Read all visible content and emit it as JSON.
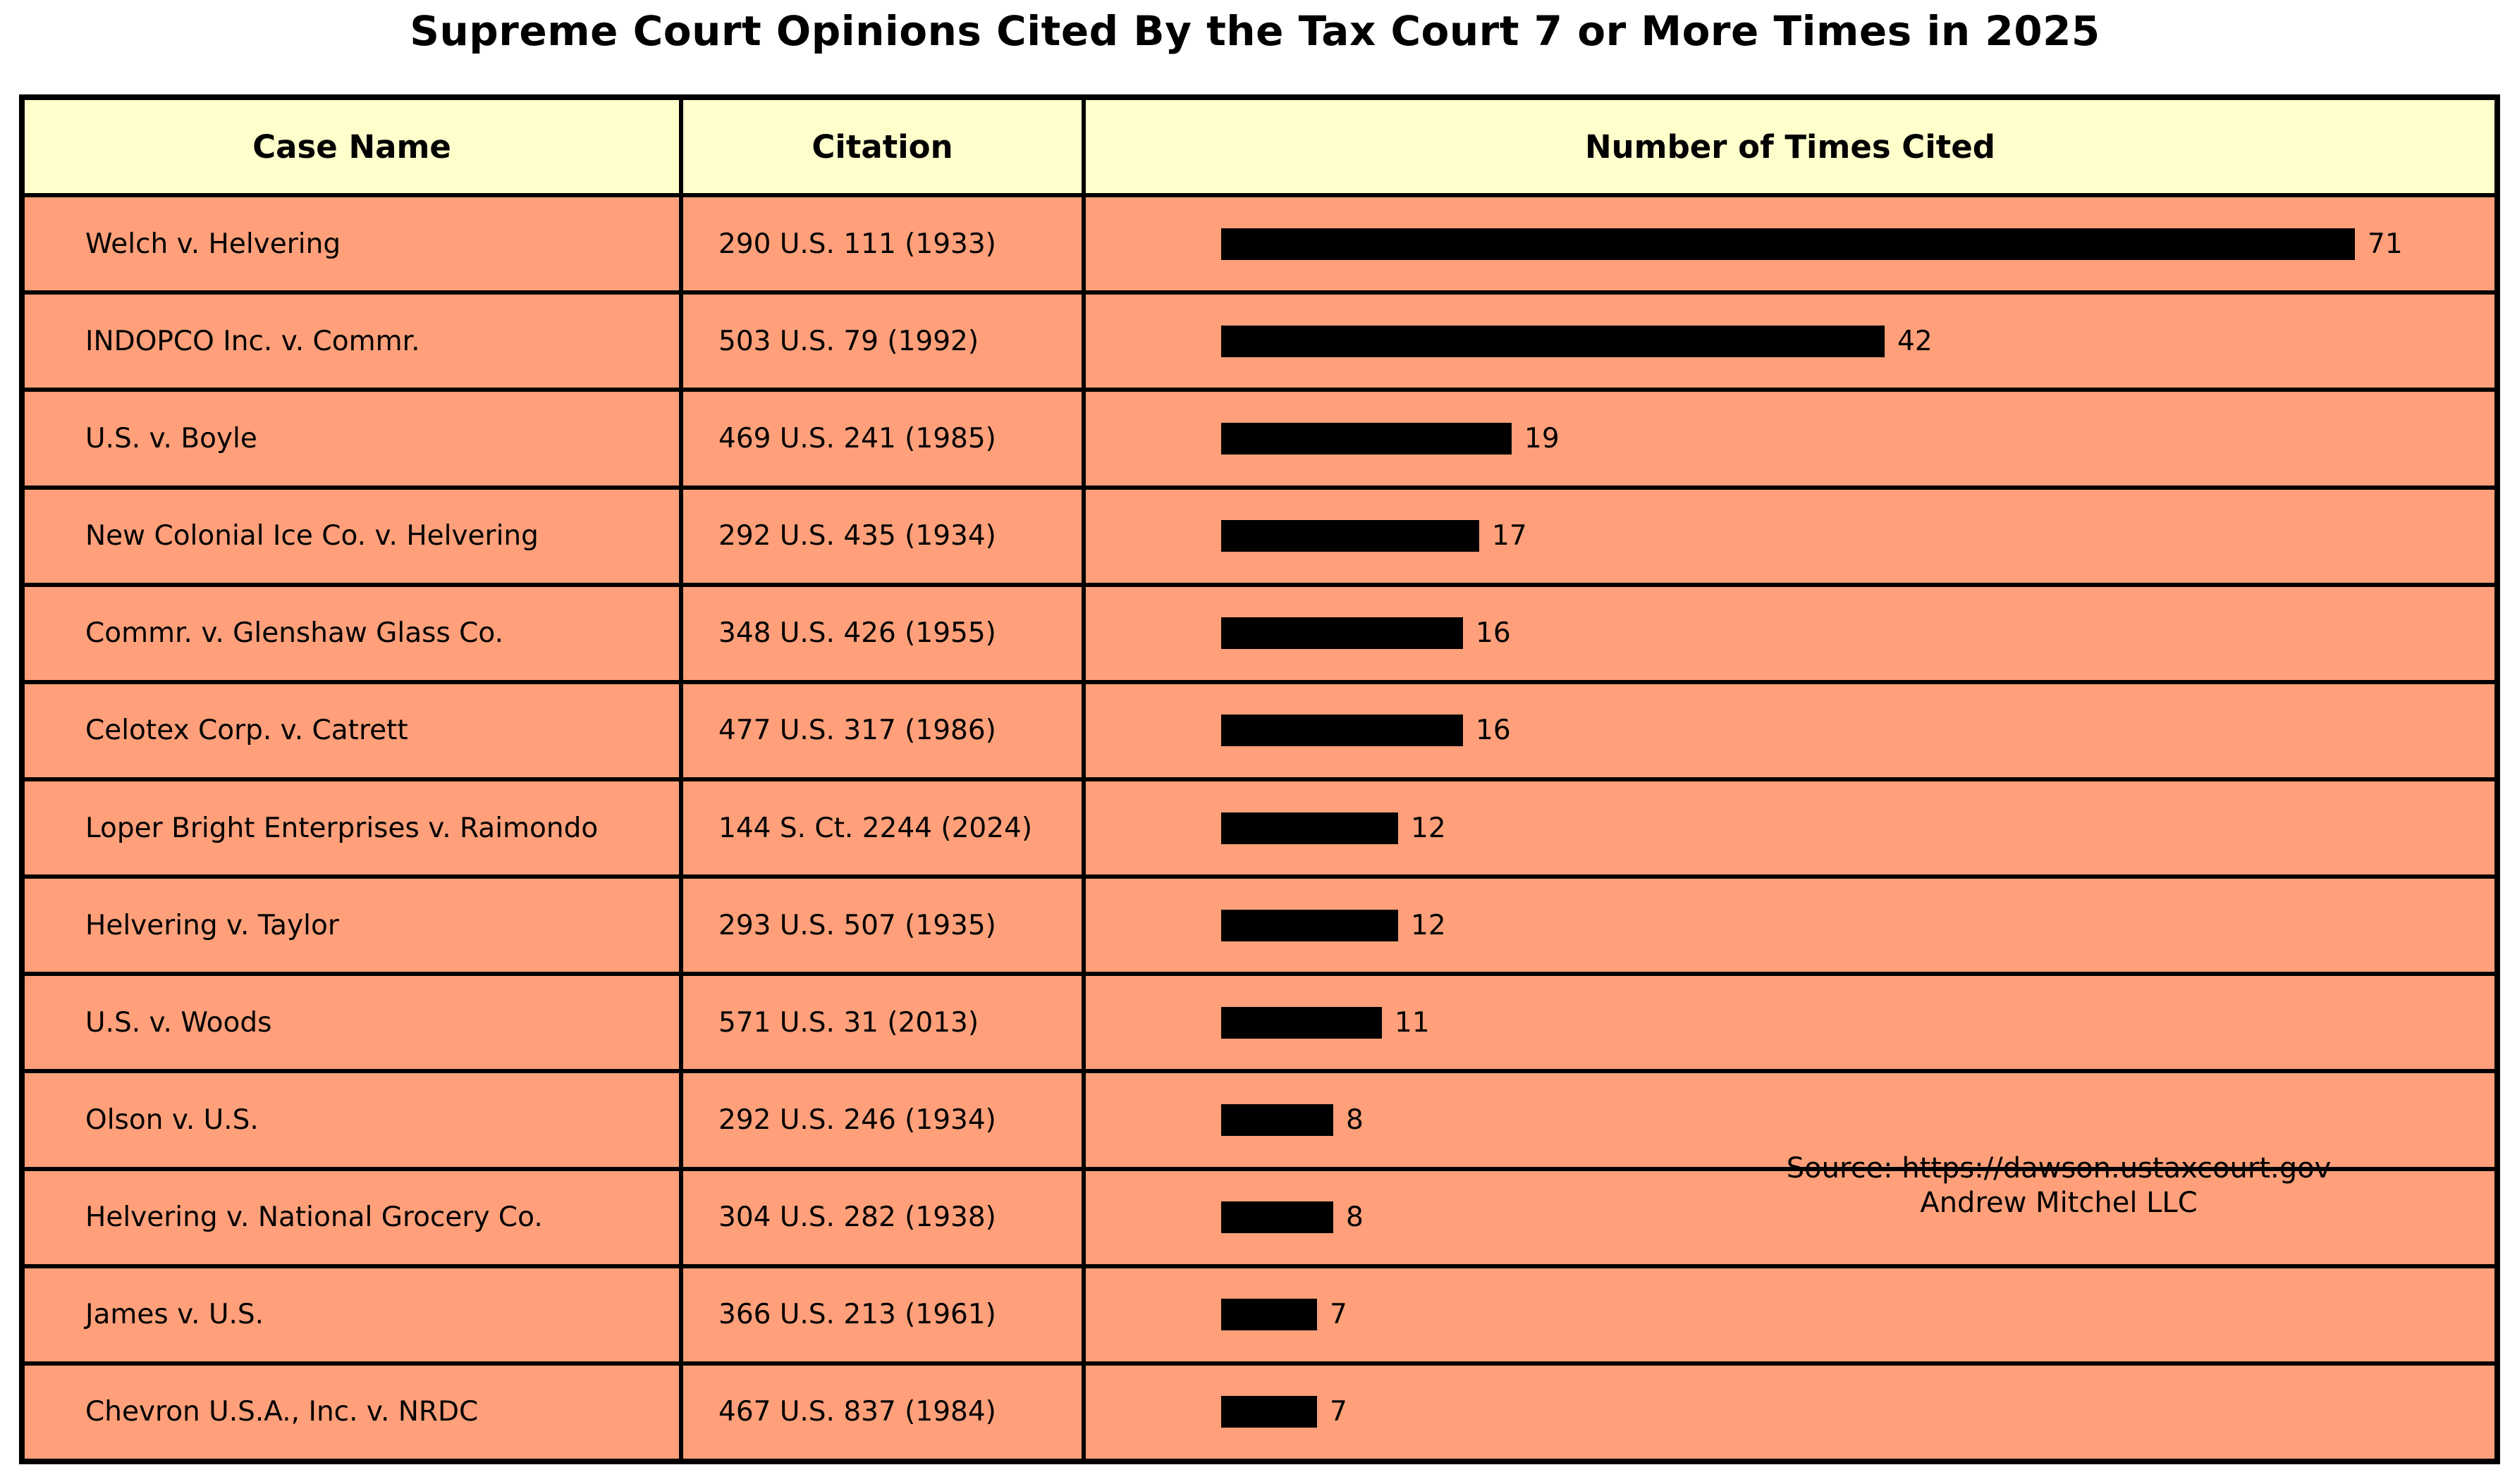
{
  "title": "Supreme Court Opinions Cited By the Tax Court 7 or More Times in 2025",
  "table": {
    "columns": [
      "Case Name",
      "Citation",
      "Number of Times Cited"
    ],
    "rows": [
      {
        "case_name": "Welch v. Helvering",
        "citation": "290 U.S. 111 (1933)",
        "times_cited": 71
      },
      {
        "case_name": "INDOPCO Inc. v. Commr.",
        "citation": "503 U.S. 79 (1992)",
        "times_cited": 42
      },
      {
        "case_name": "U.S. v. Boyle",
        "citation": "469 U.S. 241 (1985)",
        "times_cited": 19
      },
      {
        "case_name": "New Colonial Ice Co. v. Helvering",
        "citation": "292 U.S. 435 (1934)",
        "times_cited": 17
      },
      {
        "case_name": "Commr. v. Glenshaw Glass Co.",
        "citation": "348 U.S. 426 (1955)",
        "times_cited": 16
      },
      {
        "case_name": "Celotex Corp. v. Catrett",
        "citation": "477 U.S. 317 (1986)",
        "times_cited": 16
      },
      {
        "case_name": "Loper Bright Enterprises v. Raimondo",
        "citation": "144 S. Ct. 2244 (2024)",
        "times_cited": 12
      },
      {
        "case_name": "Helvering v. Taylor",
        "citation": "293 U.S. 507 (1935)",
        "times_cited": 12
      },
      {
        "case_name": "U.S. v. Woods",
        "citation": "571 U.S. 31 (2013)",
        "times_cited": 11
      },
      {
        "case_name": "Olson v. U.S.",
        "citation": "292 U.S. 246 (1934)",
        "times_cited": 8
      },
      {
        "case_name": "Helvering v. National Grocery Co.",
        "citation": "304 U.S. 282 (1938)",
        "times_cited": 8
      },
      {
        "case_name": "James v. U.S.",
        "citation": "366 U.S. 213 (1961)",
        "times_cited": 7
      },
      {
        "case_name": "Chevron U.S.A., Inc. v. NRDC",
        "citation": "467 U.S. 837 (1984)",
        "times_cited": 7
      }
    ]
  },
  "annotation": {
    "source": "Source: https://dawson.ustaxcourt.gov",
    "credit": "Andrew Mitchel LLC"
  },
  "colors": {
    "page_bg": "#FFFFFF",
    "header_bg": "#FFFFCC",
    "row_bg": "#FFA07A",
    "bar": "#000000",
    "border": "#000000",
    "text": "#000000"
  },
  "chart_data": {
    "type": "bar",
    "orientation": "horizontal",
    "title": "Supreme Court Opinions Cited By the Tax Court 7 or More Times in 2025",
    "categories": [
      "Welch v. Helvering",
      "INDOPCO Inc. v. Commr.",
      "U.S. v. Boyle",
      "New Colonial Ice Co. v. Helvering",
      "Commr. v. Glenshaw Glass Co.",
      "Celotex Corp. v. Catrett",
      "Loper Bright Enterprises v. Raimondo",
      "Helvering v. Taylor",
      "U.S. v. Woods",
      "Olson v. U.S.",
      "Helvering v. National Grocery Co.",
      "James v. U.S.",
      "Chevron U.S.A., Inc. v. NRDC"
    ],
    "citations": [
      "290 U.S. 111 (1933)",
      "503 U.S. 79 (1992)",
      "469 U.S. 241 (1985)",
      "292 U.S. 435 (1934)",
      "348 U.S. 426 (1955)",
      "477 U.S. 317 (1986)",
      "144 S. Ct. 2244 (2024)",
      "293 U.S. 507 (1935)",
      "571 U.S. 31 (2013)",
      "292 U.S. 246 (1934)",
      "304 U.S. 282 (1938)",
      "366 U.S. 213 (1961)",
      "467 U.S. 837 (1984)"
    ],
    "values": [
      71,
      42,
      19,
      17,
      16,
      16,
      12,
      12,
      11,
      8,
      8,
      7,
      7
    ],
    "xlabel": "Number of Times Cited",
    "ylabel": "Case Name",
    "xlim": [
      0,
      78
    ],
    "grid": false,
    "legend": "none",
    "bar_labels_shown": true
  }
}
